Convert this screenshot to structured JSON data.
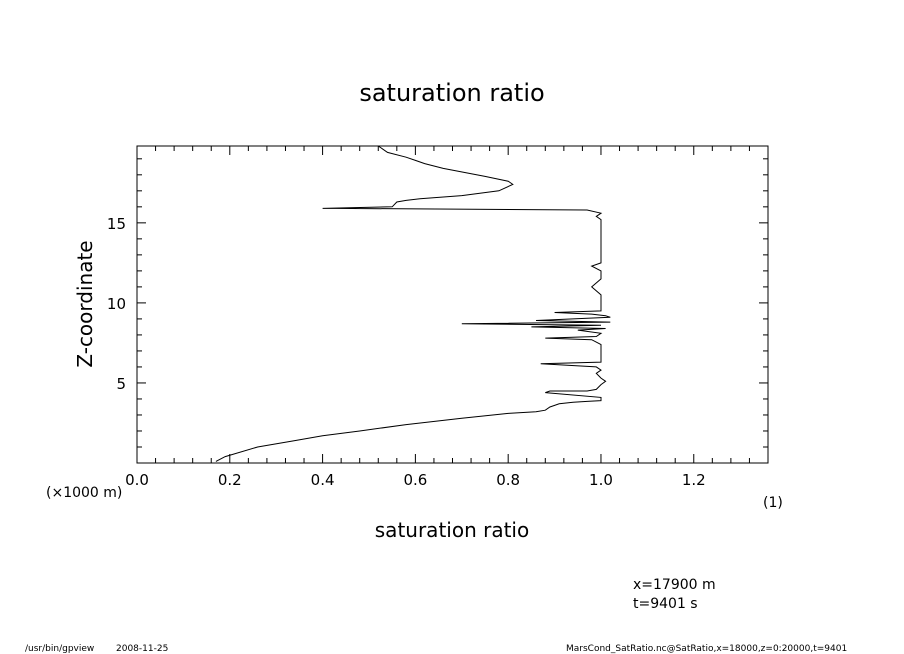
{
  "chart_data": {
    "type": "line",
    "title": "saturation ratio",
    "xlabel": "saturation ratio",
    "ylabel": "Z-coordinate",
    "x_unit_label": "(1)",
    "y_unit_label": "(×1000 m)",
    "xlim": [
      0,
      1.36
    ],
    "ylim": [
      0,
      19.8
    ],
    "xticks": [
      "0.0",
      "0.2",
      "0.4",
      "0.6",
      "0.8",
      "1.0",
      "1.2"
    ],
    "yticks": [
      "5",
      "10",
      "15"
    ],
    "grid": false,
    "series": [
      {
        "x": [
          0.17,
          0.19,
          0.26,
          0.34,
          0.4,
          0.48,
          0.58,
          0.7,
          0.8,
          0.86,
          0.88,
          0.89,
          0.9,
          0.91,
          0.94,
          0.97,
          1.0,
          1.0,
          0.88,
          0.89,
          0.97,
          0.99,
          1.0,
          1.01,
          1.0,
          0.99,
          1.0,
          0.99,
          0.87,
          1.0,
          1.0,
          0.98,
          0.88,
          0.99,
          1.0,
          0.95,
          1.01,
          0.85,
          1.0,
          0.7,
          1.02,
          0.86,
          1.02,
          1.01,
          0.98,
          0.9,
          1.0,
          1.0,
          1.0,
          0.98,
          1.0,
          1.0,
          0.98,
          1.0,
          1.0,
          1.0,
          0.99,
          1.0,
          0.97,
          0.43,
          0.4,
          0.55,
          0.56,
          0.58,
          0.61,
          0.7,
          0.78,
          0.81,
          0.8,
          0.75,
          0.66,
          0.62,
          0.6,
          0.58,
          0.54,
          0.52
        ],
        "y": [
          0.1,
          0.4,
          1.0,
          1.4,
          1.7,
          2.0,
          2.4,
          2.8,
          3.1,
          3.2,
          3.3,
          3.5,
          3.6,
          3.7,
          3.8,
          3.85,
          3.9,
          4.1,
          4.4,
          4.5,
          4.5,
          4.6,
          4.9,
          5.1,
          5.3,
          5.6,
          5.8,
          6.0,
          6.2,
          6.3,
          7.4,
          7.7,
          7.8,
          7.9,
          8.1,
          8.3,
          8.4,
          8.5,
          8.6,
          8.7,
          8.8,
          8.9,
          9.1,
          9.2,
          9.3,
          9.4,
          9.5,
          9.6,
          10.5,
          11.0,
          11.5,
          12.0,
          12.3,
          12.5,
          14.0,
          15.2,
          15.4,
          15.6,
          15.8,
          15.9,
          15.9,
          16.0,
          16.3,
          16.4,
          16.5,
          16.7,
          17.0,
          17.4,
          17.6,
          17.9,
          18.4,
          18.7,
          18.9,
          19.1,
          19.4,
          19.8
        ]
      }
    ]
  },
  "annotations": {
    "x_position": "x=17900 m",
    "time": "t=9401 s"
  },
  "footer": {
    "program": "/usr/bin/gpview",
    "date": "2008-11-25",
    "source": "MarsCond_SatRatio.nc@SatRatio,x=18000,z=0:20000,t=9401"
  }
}
